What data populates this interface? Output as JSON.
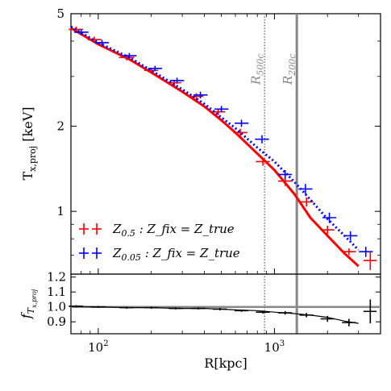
{
  "chart_data": [
    {
      "type": "line",
      "x_scale": "log",
      "y_scale": "log",
      "xlim": [
        70,
        4000
      ],
      "ylim": [
        0.6,
        5
      ],
      "grid": false,
      "ylabel_main": "T",
      "ylabel_sub": "x,proj",
      "ylabel_unit": " [keV]",
      "y_ticks": [
        {
          "value": 1,
          "label": "1"
        },
        {
          "value": 2,
          "label": "2"
        },
        {
          "value": 5,
          "label": "5"
        }
      ],
      "ref_lines": [
        {
          "value": 880,
          "label_main": "R",
          "label_sub": "500c",
          "style": "dotted"
        },
        {
          "value": 1340,
          "label_main": "R",
          "label_sub": "200c",
          "style": "solid"
        }
      ],
      "legend_placement": "bottom-left",
      "series": [
        {
          "name_main": "Z",
          "name_sub": "0.5",
          "name_rest": " : Z_fix = Z_true",
          "color": "#ff0000",
          "line_style": "solid",
          "curve": {
            "x": [
              70,
              100,
              150,
              200,
              300,
              400,
              500,
              600,
              800,
              1000,
              1300,
              1600,
              2000,
              2500,
              3000
            ],
            "y": [
              4.45,
              3.9,
              3.45,
              3.1,
              2.65,
              2.35,
              2.1,
              1.9,
              1.6,
              1.4,
              1.15,
              0.95,
              0.82,
              0.71,
              0.64
            ]
          },
          "points": [
            {
              "x": 75,
              "y": 4.4,
              "xlo": 68,
              "xhi": 82,
              "ylo": 4.3,
              "yhi": 4.5
            },
            {
              "x": 95,
              "y": 4.05,
              "xlo": 87,
              "xhi": 104,
              "ylo": 3.95,
              "yhi": 4.15
            },
            {
              "x": 145,
              "y": 3.5,
              "xlo": 131,
              "xhi": 160,
              "ylo": 3.42,
              "yhi": 3.58
            },
            {
              "x": 200,
              "y": 3.15,
              "xlo": 182,
              "xhi": 219,
              "ylo": 3.08,
              "yhi": 3.22
            },
            {
              "x": 270,
              "y": 2.85,
              "xlo": 245,
              "xhi": 296,
              "ylo": 2.78,
              "yhi": 2.92
            },
            {
              "x": 360,
              "y": 2.55,
              "xlo": 328,
              "xhi": 395,
              "ylo": 2.48,
              "yhi": 2.62
            },
            {
              "x": 480,
              "y": 2.25,
              "xlo": 437,
              "xhi": 526,
              "ylo": 2.19,
              "yhi": 2.31
            },
            {
              "x": 640,
              "y": 1.9,
              "xlo": 584,
              "xhi": 702,
              "ylo": 1.84,
              "yhi": 1.96
            },
            {
              "x": 860,
              "y": 1.5,
              "xlo": 784,
              "xhi": 942,
              "ylo": 1.45,
              "yhi": 1.55
            },
            {
              "x": 1150,
              "y": 1.28,
              "xlo": 1048,
              "xhi": 1258,
              "ylo": 1.23,
              "yhi": 1.33
            },
            {
              "x": 1520,
              "y": 1.08,
              "xlo": 1387,
              "xhi": 1663,
              "ylo": 1.04,
              "yhi": 1.12
            },
            {
              "x": 2000,
              "y": 0.86,
              "xlo": 1827,
              "xhi": 2189,
              "ylo": 0.83,
              "yhi": 0.89
            },
            {
              "x": 2650,
              "y": 0.72,
              "xlo": 2420,
              "xhi": 2900,
              "ylo": 0.7,
              "yhi": 0.74
            },
            {
              "x": 3500,
              "y": 0.67,
              "xlo": 3200,
              "xhi": 3800,
              "ylo": 0.62,
              "yhi": 0.72
            }
          ]
        },
        {
          "name_main": "Z",
          "name_sub": "0.05",
          "name_rest": " : Z_fix = Z_true",
          "color": "#0000ff",
          "line_style": "dotted",
          "curve": {
            "x": [
              70,
              100,
              150,
              200,
              300,
              400,
              500,
              600,
              800,
              1000,
              1300,
              1600,
              2000,
              2500,
              3000
            ],
            "y": [
              4.5,
              3.95,
              3.5,
              3.15,
              2.7,
              2.4,
              2.15,
              1.97,
              1.68,
              1.5,
              1.27,
              1.1,
              0.94,
              0.82,
              0.73
            ]
          },
          "points": [
            {
              "x": 80,
              "y": 4.3,
              "xlo": 73,
              "xhi": 88,
              "ylo": 4.2,
              "yhi": 4.4
            },
            {
              "x": 105,
              "y": 3.95,
              "xlo": 96,
              "xhi": 115,
              "ylo": 3.86,
              "yhi": 4.04
            },
            {
              "x": 150,
              "y": 3.55,
              "xlo": 137,
              "xhi": 165,
              "ylo": 3.47,
              "yhi": 3.63
            },
            {
              "x": 210,
              "y": 3.2,
              "xlo": 192,
              "xhi": 230,
              "ylo": 3.13,
              "yhi": 3.27
            },
            {
              "x": 280,
              "y": 2.9,
              "xlo": 256,
              "xhi": 307,
              "ylo": 2.83,
              "yhi": 2.97
            },
            {
              "x": 380,
              "y": 2.58,
              "xlo": 347,
              "xhi": 417,
              "ylo": 2.51,
              "yhi": 2.65
            },
            {
              "x": 500,
              "y": 2.3,
              "xlo": 457,
              "xhi": 548,
              "ylo": 2.24,
              "yhi": 2.36
            },
            {
              "x": 650,
              "y": 2.05,
              "xlo": 594,
              "xhi": 713,
              "ylo": 1.99,
              "yhi": 2.11
            },
            {
              "x": 850,
              "y": 1.8,
              "xlo": 776,
              "xhi": 931,
              "ylo": 1.74,
              "yhi": 1.86
            },
            {
              "x": 1150,
              "y": 1.35,
              "xlo": 1048,
              "xhi": 1258,
              "ylo": 1.3,
              "yhi": 1.4
            },
            {
              "x": 1500,
              "y": 1.2,
              "xlo": 1370,
              "xhi": 1642,
              "ylo": 1.15,
              "yhi": 1.25
            },
            {
              "x": 2050,
              "y": 0.95,
              "xlo": 1872,
              "xhi": 2244,
              "ylo": 0.91,
              "yhi": 0.99
            },
            {
              "x": 2700,
              "y": 0.82,
              "xlo": 2466,
              "xhi": 2955,
              "ylo": 0.79,
              "yhi": 0.85
            },
            {
              "x": 3300,
              "y": 0.72,
              "xlo": 3015,
              "xhi": 3612,
              "ylo": 0.69,
              "yhi": 0.75
            }
          ]
        }
      ]
    },
    {
      "type": "line",
      "x_scale": "log",
      "xlim": [
        70,
        4000
      ],
      "ylim": [
        0.82,
        1.22
      ],
      "xlabel_main": "R",
      "xlabel_unit": "[kpc]",
      "ylabel_main": "f",
      "ylabel_sub": "T",
      "ylabel_subsub": "x,proj",
      "x_ticks": [
        {
          "value": 100,
          "base": "10",
          "exp": "2"
        },
        {
          "value": 1000,
          "base": "10",
          "exp": "3"
        }
      ],
      "y_ticks": [
        {
          "value": 0.9,
          "label": "0.9"
        },
        {
          "value": 1.0,
          "label": "1.0"
        },
        {
          "value": 1.1,
          "label": "1.1"
        },
        {
          "value": 1.2,
          "label": "1.2"
        }
      ],
      "reference_value": 1.0,
      "series": [
        {
          "color": "#000000",
          "curve": {
            "x": [
              70,
              100,
              150,
              200,
              300,
              400,
              500,
              600,
              800,
              1000,
              1300,
              1600,
              2000,
              2500,
              3000
            ],
            "y": [
              1.005,
              1.0,
              0.995,
              0.995,
              0.99,
              0.99,
              0.985,
              0.98,
              0.975,
              0.965,
              0.955,
              0.945,
              0.93,
              0.905,
              0.89
            ]
          },
          "points": [
            {
              "x": 75,
              "y": 1.005,
              "xlo": 68,
              "xhi": 82,
              "ylo": 0.998,
              "yhi": 1.012
            },
            {
              "x": 100,
              "y": 1.0,
              "xlo": 91,
              "xhi": 110,
              "ylo": 0.993,
              "yhi": 1.007
            },
            {
              "x": 145,
              "y": 0.995,
              "xlo": 132,
              "xhi": 159,
              "ylo": 0.988,
              "yhi": 1.002
            },
            {
              "x": 200,
              "y": 0.995,
              "xlo": 182,
              "xhi": 219,
              "ylo": 0.988,
              "yhi": 1.002
            },
            {
              "x": 275,
              "y": 0.99,
              "xlo": 251,
              "xhi": 301,
              "ylo": 0.983,
              "yhi": 0.997
            },
            {
              "x": 370,
              "y": 0.99,
              "xlo": 338,
              "xhi": 405,
              "ylo": 0.983,
              "yhi": 0.997
            },
            {
              "x": 490,
              "y": 0.985,
              "xlo": 447,
              "xhi": 537,
              "ylo": 0.977,
              "yhi": 0.993
            },
            {
              "x": 650,
              "y": 0.975,
              "xlo": 594,
              "xhi": 712,
              "ylo": 0.967,
              "yhi": 0.983
            },
            {
              "x": 860,
              "y": 0.965,
              "xlo": 785,
              "xhi": 942,
              "ylo": 0.955,
              "yhi": 0.975
            },
            {
              "x": 1150,
              "y": 0.96,
              "xlo": 1050,
              "xhi": 1260,
              "ylo": 0.948,
              "yhi": 0.972
            },
            {
              "x": 1520,
              "y": 0.945,
              "xlo": 1388,
              "xhi": 1665,
              "ylo": 0.93,
              "yhi": 0.96
            },
            {
              "x": 2000,
              "y": 0.92,
              "xlo": 1826,
              "xhi": 2190,
              "ylo": 0.9,
              "yhi": 0.94
            },
            {
              "x": 2650,
              "y": 0.895,
              "xlo": 2420,
              "xhi": 2900,
              "ylo": 0.87,
              "yhi": 0.92
            },
            {
              "x": 3500,
              "y": 0.97,
              "xlo": 3200,
              "xhi": 3800,
              "ylo": 0.89,
              "yhi": 1.05
            }
          ]
        }
      ]
    }
  ]
}
